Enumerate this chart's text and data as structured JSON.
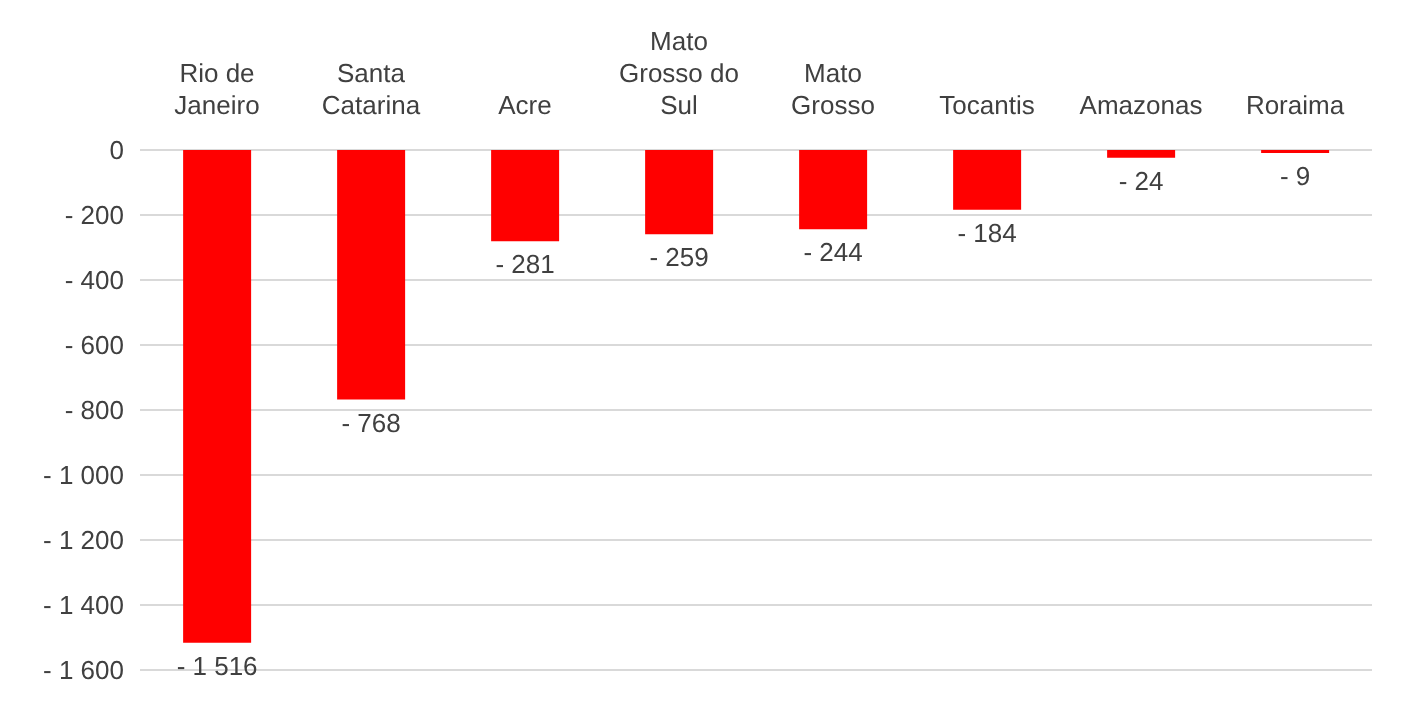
{
  "chart_data": {
    "type": "bar",
    "categories": [
      "Rio de Janeiro",
      "Santa Catarina",
      "Acre",
      "Mato Grosso do Sul",
      "Mato Grosso",
      "Tocantis",
      "Amazonas",
      "Roraima"
    ],
    "values": [
      -1516,
      -768,
      -281,
      -259,
      -244,
      -184,
      -24,
      -9
    ],
    "value_labels": [
      "- 1 516",
      "- 768",
      "- 281",
      "- 259",
      "- 244",
      "- 184",
      "- 24",
      "- 9"
    ],
    "color": "#ff0000",
    "ylim": [
      -1600,
      0
    ],
    "yticks": [
      {
        "value": 0,
        "label": "0"
      },
      {
        "value": -200,
        "label": "- 200"
      },
      {
        "value": -400,
        "label": "- 400"
      },
      {
        "value": -600,
        "label": "- 600"
      },
      {
        "value": -800,
        "label": "- 800"
      },
      {
        "value": -1000,
        "label": "- 1 000"
      },
      {
        "value": -1200,
        "label": "- 1 200"
      },
      {
        "value": -1400,
        "label": "- 1 400"
      },
      {
        "value": -1600,
        "label": "- 1 600"
      }
    ],
    "grid": "y"
  }
}
